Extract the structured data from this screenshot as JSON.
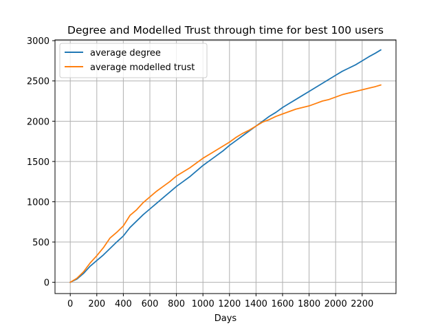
{
  "chart_data": {
    "type": "line",
    "title": "Degree and Modelled Trust through time for best 100 users",
    "xlabel": "Days",
    "ylabel": "",
    "xlim": [
      -115,
      2455
    ],
    "ylim": [
      -140,
      3010
    ],
    "xticks": [
      0,
      200,
      400,
      600,
      800,
      1000,
      1200,
      1400,
      1600,
      1800,
      2000,
      2200
    ],
    "yticks": [
      0,
      500,
      1000,
      1500,
      2000,
      2500,
      3000
    ],
    "grid": true,
    "legend_position": "upper-left",
    "series": [
      {
        "name": "average degree",
        "color": "#1f77b4",
        "x": [
          0,
          50,
          100,
          150,
          200,
          250,
          300,
          350,
          400,
          450,
          500,
          550,
          600,
          650,
          700,
          750,
          800,
          850,
          900,
          950,
          1000,
          1050,
          1100,
          1150,
          1200,
          1250,
          1300,
          1350,
          1400,
          1450,
          1500,
          1550,
          1600,
          1650,
          1700,
          1750,
          1800,
          1850,
          1900,
          1950,
          2000,
          2050,
          2100,
          2150,
          2200,
          2250,
          2300,
          2340
        ],
        "y": [
          0,
          40,
          110,
          200,
          270,
          340,
          420,
          500,
          575,
          680,
          760,
          840,
          910,
          980,
          1050,
          1120,
          1190,
          1250,
          1310,
          1380,
          1450,
          1510,
          1570,
          1630,
          1700,
          1760,
          1820,
          1880,
          1940,
          2000,
          2060,
          2110,
          2170,
          2220,
          2270,
          2320,
          2370,
          2420,
          2470,
          2520,
          2570,
          2620,
          2660,
          2700,
          2750,
          2800,
          2845,
          2885
        ]
      },
      {
        "name": "average modelled trust",
        "color": "#ff7f0e",
        "x": [
          0,
          50,
          100,
          150,
          200,
          250,
          300,
          350,
          400,
          450,
          500,
          550,
          600,
          650,
          700,
          750,
          800,
          850,
          900,
          950,
          1000,
          1050,
          1100,
          1150,
          1200,
          1250,
          1300,
          1350,
          1400,
          1450,
          1500,
          1550,
          1600,
          1650,
          1700,
          1750,
          1800,
          1850,
          1900,
          1950,
          2000,
          2050,
          2100,
          2150,
          2200,
          2250,
          2300,
          2340
        ],
        "y": [
          0,
          50,
          130,
          240,
          330,
          430,
          550,
          620,
          700,
          830,
          900,
          990,
          1060,
          1130,
          1190,
          1250,
          1320,
          1370,
          1420,
          1480,
          1540,
          1590,
          1640,
          1690,
          1740,
          1800,
          1850,
          1890,
          1940,
          1990,
          2020,
          2060,
          2090,
          2120,
          2150,
          2170,
          2190,
          2220,
          2250,
          2270,
          2300,
          2330,
          2350,
          2370,
          2390,
          2410,
          2430,
          2450
        ]
      }
    ]
  }
}
